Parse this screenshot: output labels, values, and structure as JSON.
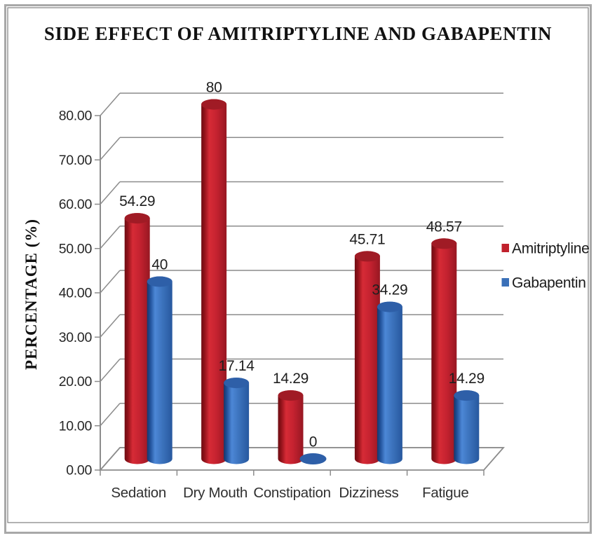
{
  "window": {
    "background": "#ffffff",
    "frame_border_color": "#a8a8a8",
    "inner_border_color": "#7f7f7f"
  },
  "chart_data": {
    "type": "bar",
    "style": "3d-cylinder",
    "title": "SIDE EFFECT OF AMITRIPTYLINE AND GABAPENTIN",
    "ylabel": "PERCENTAGE (%)",
    "xlabel": "",
    "categories": [
      "Sedation",
      "Dry Mouth",
      "Constipation",
      "Dizziness",
      "Fatigue"
    ],
    "series": [
      {
        "name": "Amitriptyline",
        "color": "#c0212c",
        "color_dark": "#a01b25",
        "values": [
          54.29,
          80,
          14.29,
          45.71,
          48.57
        ],
        "value_labels": [
          "54.29",
          "80",
          "14.29",
          "45.71",
          "48.57"
        ]
      },
      {
        "name": "Gabapentin",
        "color": "#3a70b8",
        "color_dark": "#2e5fa8",
        "values": [
          40,
          17.14,
          0,
          34.29,
          14.29
        ],
        "value_labels": [
          "40",
          "17.14",
          "0",
          "34.29",
          "14.29"
        ]
      }
    ],
    "y_axis": {
      "min": 0,
      "max": 80,
      "tick_step": 10,
      "tick_labels": [
        "0.00",
        "10.00",
        "20.00",
        "30.00",
        "40.00",
        "50.00",
        "60.00",
        "70.00",
        "80.00"
      ]
    },
    "grid": true,
    "grid_color": "#8c8c8c",
    "legend_position": "right",
    "text_color": "#262626"
  }
}
